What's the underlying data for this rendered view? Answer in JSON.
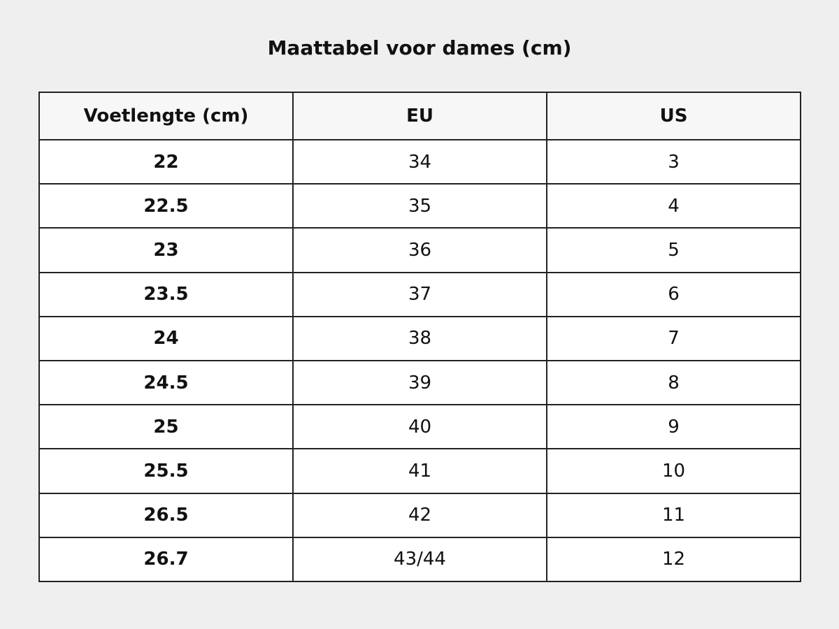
{
  "title": "Maattabel voor dames (cm)",
  "table": {
    "header": [
      "Voetlengte (cm)",
      "EU",
      "US"
    ],
    "rows": [
      [
        "22",
        "34",
        "3"
      ],
      [
        "22.5",
        "35",
        "4"
      ],
      [
        "23",
        "36",
        "5"
      ],
      [
        "23.5",
        "37",
        "6"
      ],
      [
        "24",
        "38",
        "7"
      ],
      [
        "24.5",
        "39",
        "8"
      ],
      [
        "25",
        "40",
        "9"
      ],
      [
        "25.5",
        "41",
        "10"
      ],
      [
        "26.5",
        "42",
        "11"
      ],
      [
        "26.7",
        "43/44",
        "12"
      ]
    ]
  }
}
